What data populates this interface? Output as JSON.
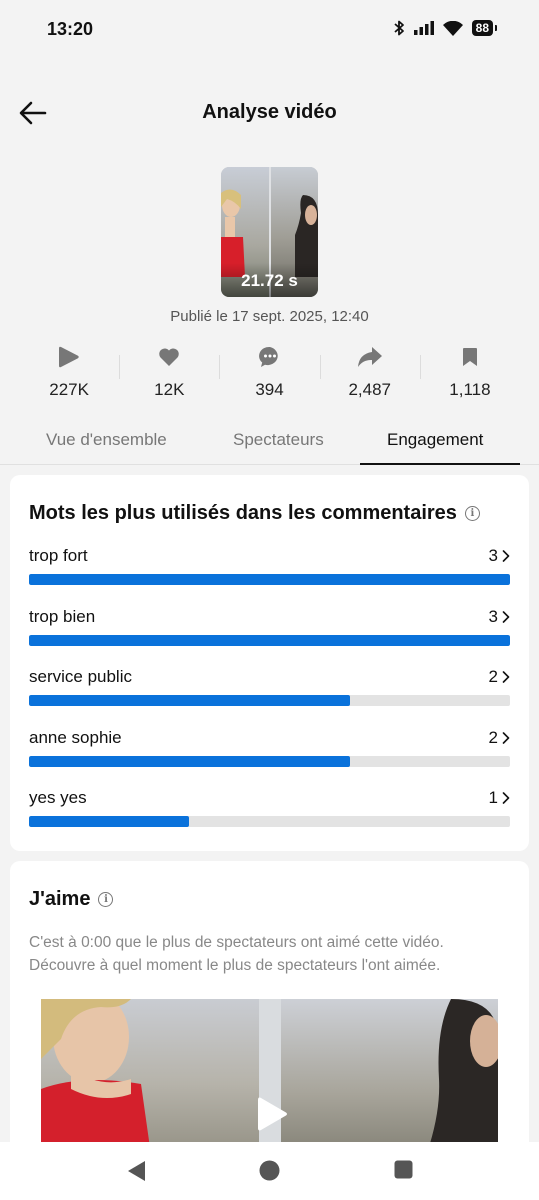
{
  "status_bar": {
    "time": "13:20",
    "battery": "88"
  },
  "header": {
    "title": "Analyse vidéo"
  },
  "video": {
    "duration": "21.72 s",
    "published": "Publié le 17 sept. 2025, 12:40"
  },
  "stats": [
    {
      "icon": "play-icon",
      "value": "227K"
    },
    {
      "icon": "heart-icon",
      "value": "12K"
    },
    {
      "icon": "comment-icon",
      "value": "394"
    },
    {
      "icon": "share-icon",
      "value": "2,487"
    },
    {
      "icon": "bookmark-icon",
      "value": "1,118"
    }
  ],
  "tabs": [
    {
      "label": "Vue d'ensemble",
      "active": false
    },
    {
      "label": "Spectateurs",
      "active": false
    },
    {
      "label": "Engagement",
      "active": true
    }
  ],
  "words_card": {
    "title": "Mots les plus utilisés dans les commentaires",
    "items": [
      {
        "word": "trop fort",
        "count": "3",
        "fraction": 1.0
      },
      {
        "word": "trop bien",
        "count": "3",
        "fraction": 1.0
      },
      {
        "word": "service public",
        "count": "2",
        "fraction": 0.667
      },
      {
        "word": "anne sophie",
        "count": "2",
        "fraction": 0.667
      },
      {
        "word": "yes yes",
        "count": "1",
        "fraction": 0.333
      }
    ],
    "bar_color": "#0a72db"
  },
  "likes_card": {
    "title": "J'aime",
    "description": "C'est à 0:00 que le plus de spectateurs ont aimé cette vidéo. Découvre à quel moment le plus de spectateurs l'ont aimée."
  }
}
